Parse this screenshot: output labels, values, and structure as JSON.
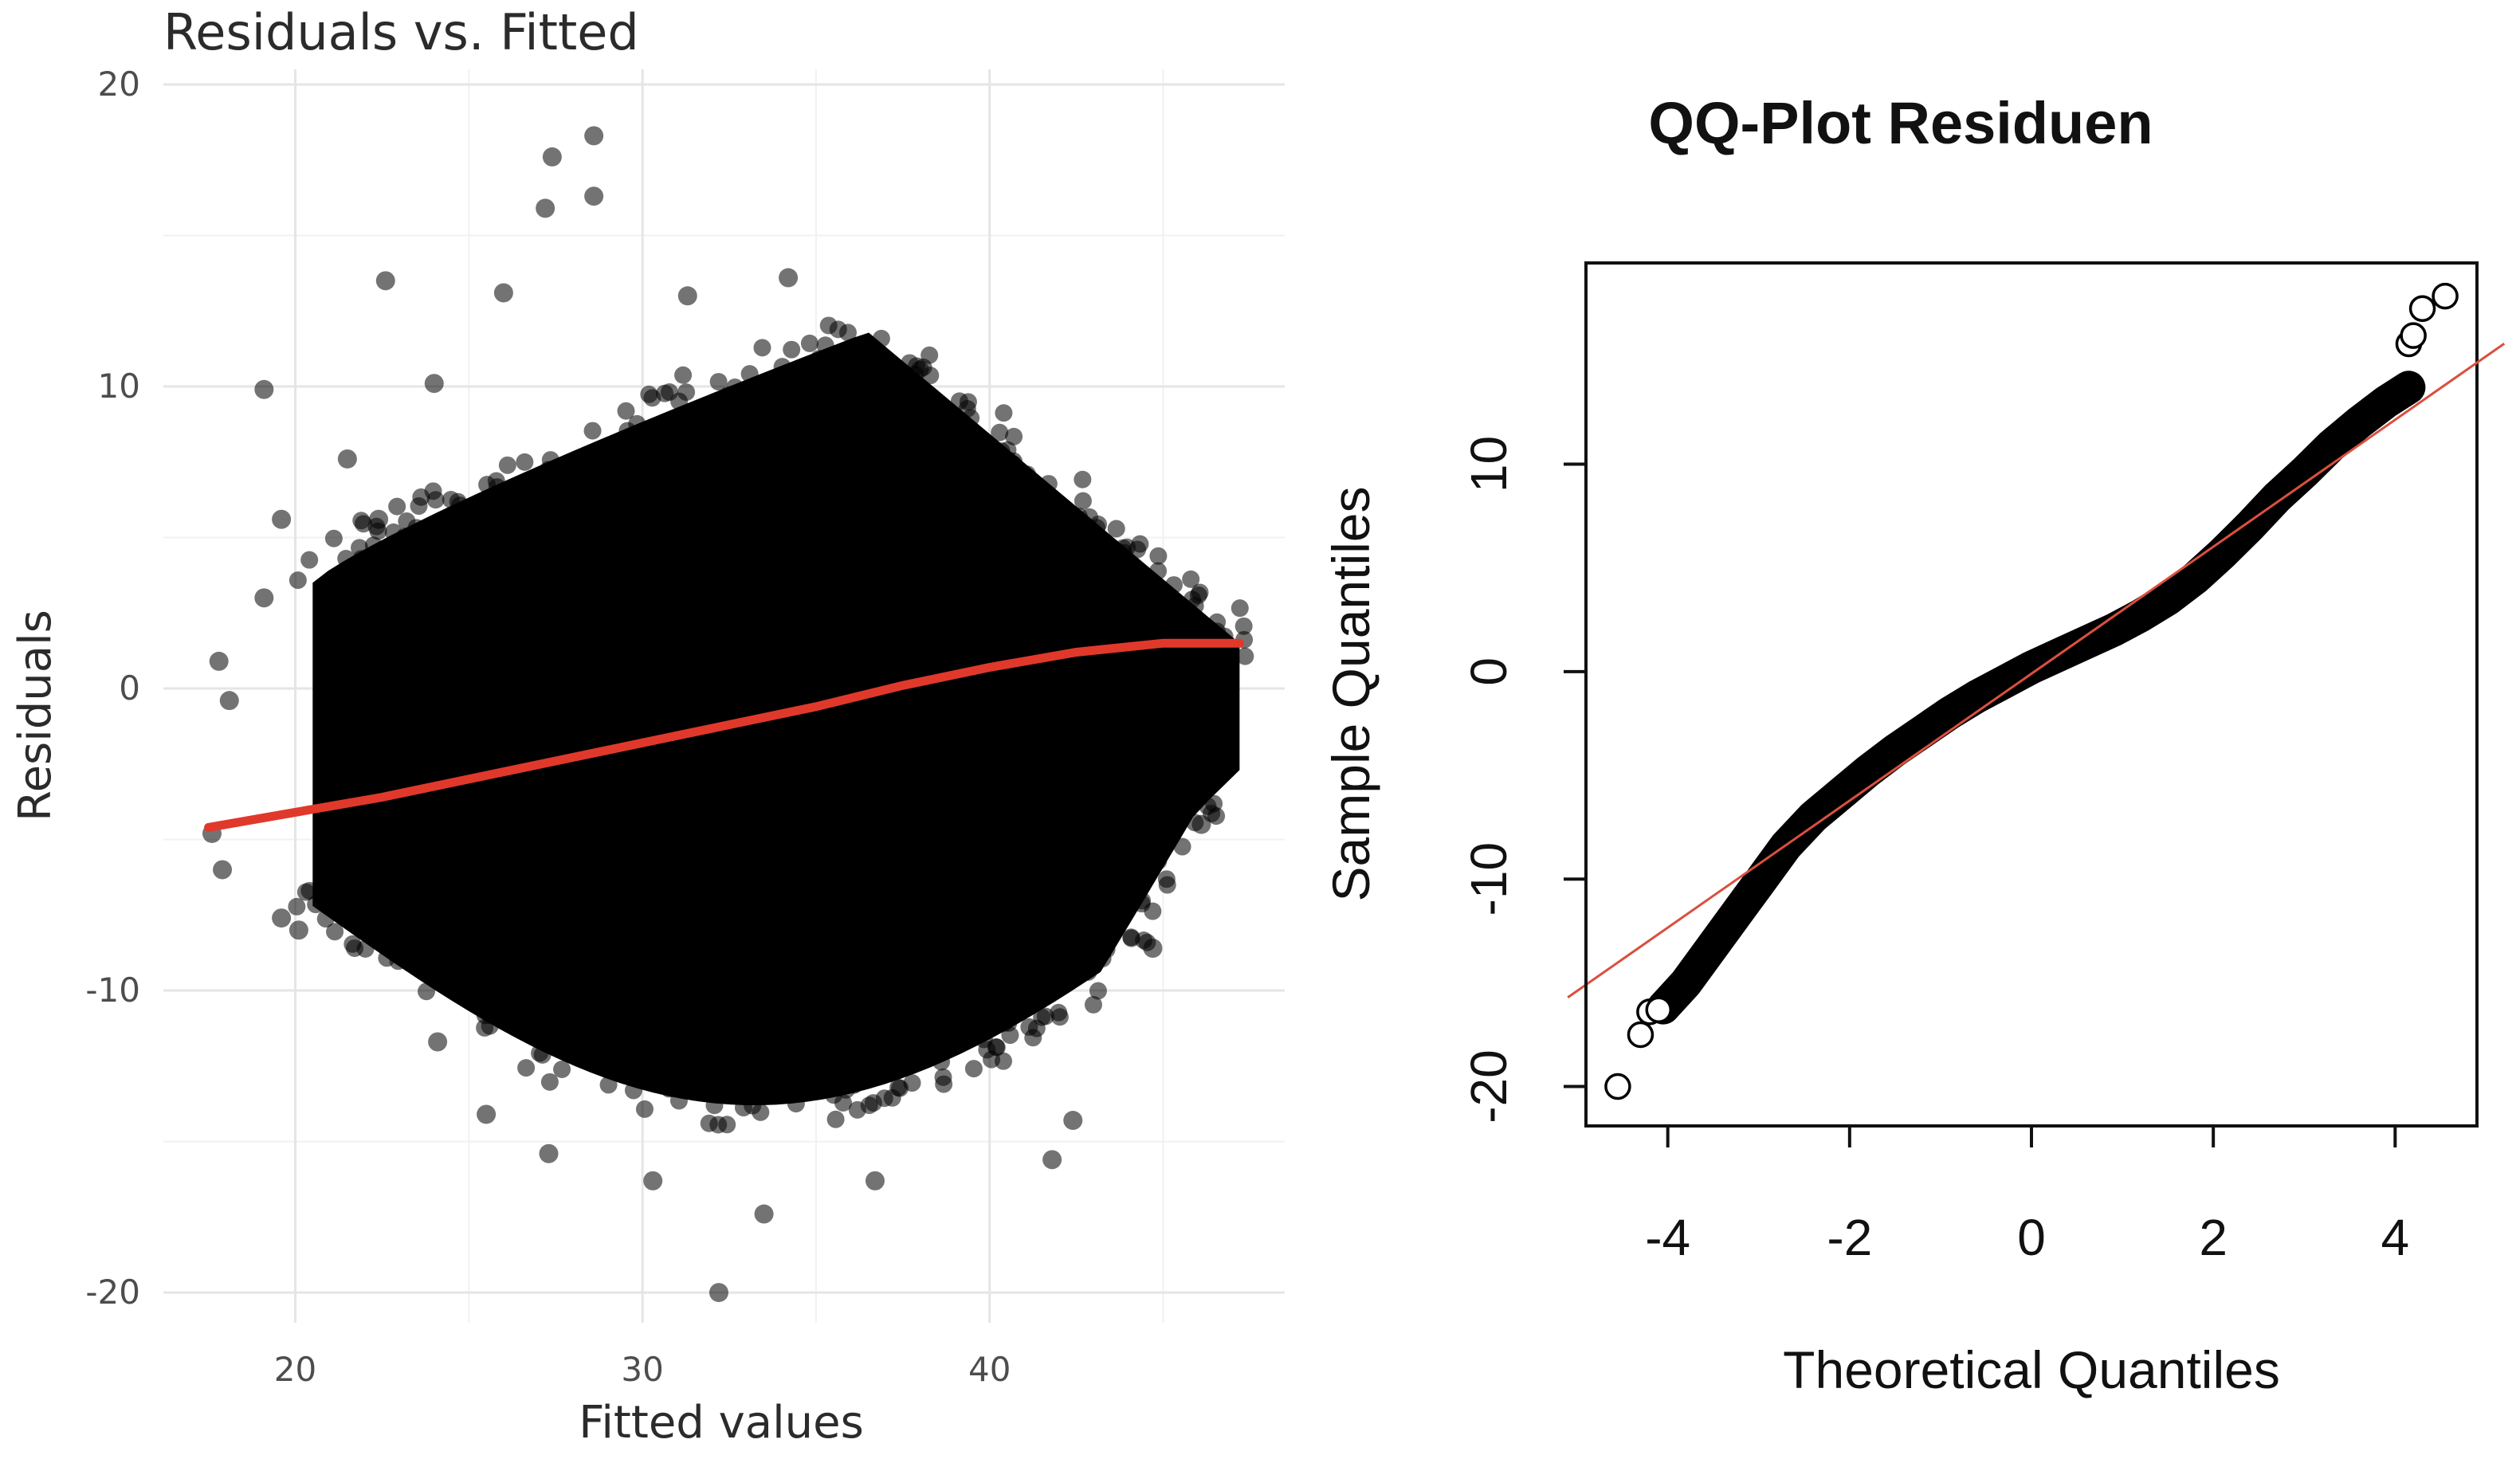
{
  "chart_data": [
    {
      "type": "scatter",
      "title": "Residuals vs. Fitted",
      "xlabel": "Fitted values",
      "ylabel": "Residuals",
      "xlim": [
        16.2,
        48.5
      ],
      "ylim": [
        -21.0,
        20.5
      ],
      "x_ticks": [
        20,
        30,
        40
      ],
      "y_ticks": [
        -20,
        -10,
        0,
        10,
        20
      ],
      "grid": true,
      "point_color": "#000000",
      "point_alpha": 0.55,
      "smooth_color": "#E0392B",
      "body_note_fitted_range": [
        20.5,
        47.2
      ],
      "notable_points": [
        {
          "x": 28.6,
          "y": 18.3
        },
        {
          "x": 27.4,
          "y": 17.6
        },
        {
          "x": 27.2,
          "y": 15.9
        },
        {
          "x": 28.6,
          "y": 16.3
        },
        {
          "x": 22.6,
          "y": 13.5
        },
        {
          "x": 19.1,
          "y": 9.9
        },
        {
          "x": 24.0,
          "y": 10.1
        },
        {
          "x": 21.5,
          "y": 7.6
        },
        {
          "x": 19.6,
          "y": 5.6
        },
        {
          "x": 22.4,
          "y": 5.6
        },
        {
          "x": 19.1,
          "y": 3.0
        },
        {
          "x": 17.8,
          "y": 0.9
        },
        {
          "x": 18.1,
          "y": -0.4
        },
        {
          "x": 17.6,
          "y": -4.8
        },
        {
          "x": 17.9,
          "y": -6.0
        },
        {
          "x": 19.6,
          "y": -7.6
        },
        {
          "x": 20.1,
          "y": -8.0
        },
        {
          "x": 24.1,
          "y": -11.7
        },
        {
          "x": 25.5,
          "y": -14.1
        },
        {
          "x": 27.3,
          "y": -15.4
        },
        {
          "x": 30.3,
          "y": -16.3
        },
        {
          "x": 33.5,
          "y": -17.4
        },
        {
          "x": 32.2,
          "y": -20.0
        },
        {
          "x": 36.7,
          "y": -16.3
        },
        {
          "x": 41.8,
          "y": -15.6
        },
        {
          "x": 42.4,
          "y": -14.3
        },
        {
          "x": 44.7,
          "y": -8.6
        },
        {
          "x": 46.1,
          "y": -4.5
        },
        {
          "x": 34.2,
          "y": 13.6
        },
        {
          "x": 31.3,
          "y": 13.0
        },
        {
          "x": 26.0,
          "y": 13.1
        }
      ],
      "smooth_x": [
        17.5,
        20,
        22.5,
        25,
        27.5,
        30,
        32.5,
        35,
        37.5,
        40,
        42.5,
        45,
        47.2
      ],
      "smooth_y": [
        -4.6,
        -4.1,
        -3.6,
        -3.0,
        -2.4,
        -1.8,
        -1.2,
        -0.6,
        0.1,
        0.7,
        1.2,
        1.5,
        1.5
      ]
    },
    {
      "type": "scatter",
      "title": "QQ-Plot Residuen",
      "xlabel": "Theoretical Quantiles",
      "ylabel": "Sample Quantiles",
      "xlim": [
        -4.9,
        4.9
      ],
      "ylim": [
        -21.9,
        19.7
      ],
      "x_ticks": [
        -4,
        -2,
        0,
        2,
        4
      ],
      "y_ticks": [
        -20,
        -10,
        0,
        10
      ],
      "grid": false,
      "point_style": "open-circle",
      "ref_line_color": "#D9503F",
      "ref_line": {
        "slope": 3.06,
        "intercept": -0.1
      },
      "body_quantiles_x": [
        -4.05,
        -3.8,
        -3.5,
        -3.2,
        -3.0,
        -2.7,
        -2.4,
        -2.1,
        -1.8,
        -1.5,
        -1.2,
        -0.9,
        -0.6,
        -0.3,
        0.0,
        0.3,
        0.6,
        0.9,
        1.2,
        1.5,
        1.8,
        2.1,
        2.4,
        2.7,
        3.0,
        3.3,
        3.6,
        3.9,
        4.15
      ],
      "body_quantiles_y": [
        -16.2,
        -15.0,
        -13.2,
        -11.4,
        -10.2,
        -8.4,
        -7.0,
        -5.9,
        -4.8,
        -3.8,
        -2.9,
        -2.0,
        -1.2,
        -0.5,
        0.2,
        0.8,
        1.4,
        2.0,
        2.7,
        3.5,
        4.5,
        5.7,
        7.0,
        8.4,
        9.6,
        10.9,
        12.0,
        13.0,
        13.7
      ],
      "outliers": [
        {
          "x": -4.55,
          "y": -20.0
        },
        {
          "x": -4.3,
          "y": -17.5
        },
        {
          "x": -4.2,
          "y": -16.4
        },
        {
          "x": -4.1,
          "y": -16.3
        },
        {
          "x": 4.15,
          "y": 15.8
        },
        {
          "x": 4.2,
          "y": 16.2
        },
        {
          "x": 4.3,
          "y": 17.5
        },
        {
          "x": 4.55,
          "y": 18.1
        }
      ]
    }
  ]
}
